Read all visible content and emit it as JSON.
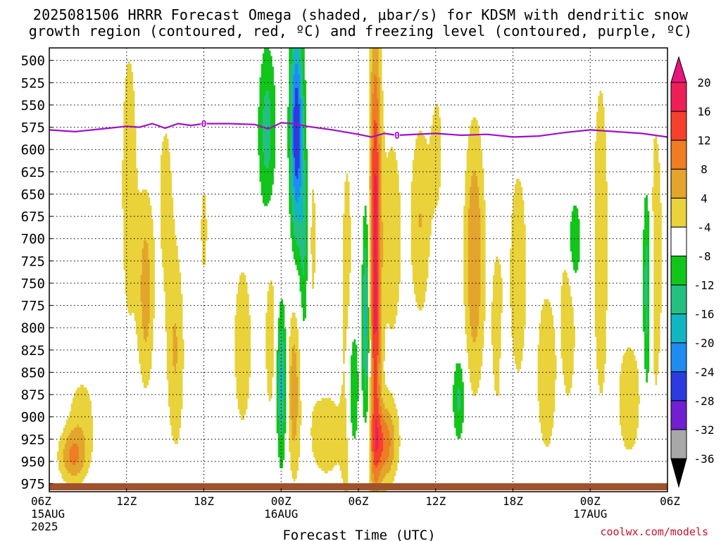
{
  "title_line1": "2025081506 HRRR Forecast Omega (shaded, μbar/s) for KDSM with dendritic snow",
  "title_line2": "growth region (contoured, red, ºC) and freezing level (contoured, purple, ºC)",
  "credit": "coolwx.com/models",
  "chart_data": {
    "type": "heatmap",
    "xlabel": "Forecast Time (UTC)",
    "x_range_hours": [
      0,
      48
    ],
    "x_ticks": [
      {
        "h": 0,
        "label": "06Z",
        "sub": "15AUG",
        "sub2": "2025"
      },
      {
        "h": 6,
        "label": "12Z"
      },
      {
        "h": 12,
        "label": "18Z"
      },
      {
        "h": 18,
        "label": "00Z",
        "sub": "16AUG"
      },
      {
        "h": 24,
        "label": "06Z"
      },
      {
        "h": 30,
        "label": "12Z"
      },
      {
        "h": 36,
        "label": "18Z"
      },
      {
        "h": 42,
        "label": "00Z",
        "sub": "17AUG"
      },
      {
        "h": 48,
        "label": "06Z"
      }
    ],
    "y_levels": [
      500,
      525,
      550,
      575,
      600,
      625,
      650,
      675,
      700,
      725,
      750,
      775,
      800,
      825,
      850,
      875,
      900,
      925,
      950,
      975
    ],
    "y_range_mb": [
      486,
      984
    ],
    "grid": true,
    "colorbar": {
      "labels": [
        "20",
        "16",
        "12",
        "8",
        "4",
        "-4",
        "-8",
        "-12",
        "-16",
        "-20",
        "-24",
        "-28",
        "-32",
        "-36"
      ],
      "colors": [
        "#ee1f57",
        "#f5402e",
        "#ee7d24",
        "#e3a52c",
        "#e9d23a",
        "#ffffff",
        "#12c51a",
        "#23c080",
        "#12b5c2",
        "#1e8cf0",
        "#2a3ce0",
        "#7020d0",
        "#a010c8",
        "#a8a8a8"
      ],
      "top_arrow_color": "#e8157f",
      "bottom_arrow_color": "#000000"
    },
    "freezing_level": {
      "color": "#a010c8",
      "label": "0",
      "points": [
        [
          0,
          578
        ],
        [
          2,
          580
        ],
        [
          4,
          577
        ],
        [
          6,
          574
        ],
        [
          7,
          575
        ],
        [
          8,
          571
        ],
        [
          9,
          576
        ],
        [
          10,
          571
        ],
        [
          11,
          573
        ],
        [
          12,
          571
        ],
        [
          14,
          571
        ],
        [
          16,
          572
        ],
        [
          17,
          577
        ],
        [
          18,
          570
        ],
        [
          19,
          571
        ],
        [
          20,
          574
        ],
        [
          22,
          578
        ],
        [
          24,
          583
        ],
        [
          25,
          586
        ],
        [
          26,
          582
        ],
        [
          27,
          584
        ],
        [
          30,
          582
        ],
        [
          32,
          584
        ],
        [
          34,
          583
        ],
        [
          36,
          586
        ],
        [
          38,
          585
        ],
        [
          40,
          581
        ],
        [
          42,
          578
        ],
        [
          44,
          580
        ],
        [
          46,
          582
        ],
        [
          48,
          586
        ]
      ],
      "label_positions": [
        [
          12,
          571
        ],
        [
          27,
          584
        ]
      ]
    },
    "omega_features": [
      {
        "type": "pos",
        "h": 1.8,
        "p": 945,
        "sh": 1.1,
        "sp": 30,
        "v": 11
      },
      {
        "type": "pos",
        "h": 2.5,
        "p": 900,
        "sh": 1.2,
        "sp": 55,
        "v": 6
      },
      {
        "type": "pos",
        "h": 6.2,
        "p": 640,
        "sh": 0.8,
        "sp": 220,
        "v": 6
      },
      {
        "type": "pos",
        "h": 7.5,
        "p": 760,
        "sh": 0.6,
        "sp": 110,
        "v": 10
      },
      {
        "type": "pos",
        "h": 9.0,
        "p": 650,
        "sh": 0.8,
        "sp": 140,
        "v": 5
      },
      {
        "type": "pos",
        "h": 9.8,
        "p": 830,
        "sh": 0.7,
        "sp": 120,
        "v": 8
      },
      {
        "type": "pos",
        "h": 12.0,
        "p": 690,
        "sh": 0.4,
        "sp": 90,
        "v": 5
      },
      {
        "type": "pos",
        "h": 15.0,
        "p": 820,
        "sh": 0.8,
        "sp": 110,
        "v": 7
      },
      {
        "type": "pos",
        "h": 17.2,
        "p": 810,
        "sh": 0.6,
        "sp": 120,
        "v": 6
      },
      {
        "type": "pos",
        "h": 19.0,
        "p": 870,
        "sh": 0.5,
        "sp": 100,
        "v": 11
      },
      {
        "type": "pos",
        "h": 20.4,
        "p": 700,
        "sh": 0.5,
        "sp": 140,
        "v": 5
      },
      {
        "type": "pos",
        "h": 21.5,
        "p": 920,
        "sh": 1.3,
        "sp": 50,
        "v": 8
      },
      {
        "type": "pos",
        "h": 23.1,
        "p": 820,
        "sh": 0.5,
        "sp": 260,
        "v": 7
      },
      {
        "type": "pos",
        "h": 25.3,
        "p": 720,
        "sh": 0.45,
        "sp": 260,
        "v": 22
      },
      {
        "type": "pos",
        "h": 26.0,
        "p": 930,
        "sh": 1.0,
        "sp": 45,
        "v": 14
      },
      {
        "type": "pos",
        "h": 26.6,
        "p": 700,
        "sh": 1.0,
        "sp": 160,
        "v": 6
      },
      {
        "type": "pos",
        "h": 28.8,
        "p": 680,
        "sh": 0.8,
        "sp": 120,
        "v": 8
      },
      {
        "type": "pos",
        "h": 30.1,
        "p": 600,
        "sh": 0.6,
        "sp": 100,
        "v": 5
      },
      {
        "type": "pos",
        "h": 33.0,
        "p": 720,
        "sh": 0.8,
        "sp": 150,
        "v": 12
      },
      {
        "type": "pos",
        "h": 34.8,
        "p": 800,
        "sh": 0.6,
        "sp": 120,
        "v": 6
      },
      {
        "type": "pos",
        "h": 36.4,
        "p": 740,
        "sh": 0.7,
        "sp": 130,
        "v": 8
      },
      {
        "type": "pos",
        "h": 38.6,
        "p": 850,
        "sh": 0.8,
        "sp": 100,
        "v": 8
      },
      {
        "type": "pos",
        "h": 40.3,
        "p": 750,
        "sh": 0.6,
        "sp": 130,
        "v": 10
      },
      {
        "type": "pos",
        "h": 42.8,
        "p": 700,
        "sh": 0.6,
        "sp": 200,
        "v": 8
      },
      {
        "type": "pos",
        "h": 45.0,
        "p": 880,
        "sh": 1.2,
        "sp": 90,
        "v": 6
      },
      {
        "type": "pos",
        "h": 47.0,
        "p": 720,
        "sh": 0.8,
        "sp": 220,
        "v": 6
      },
      {
        "type": "neg",
        "h": 16.9,
        "p": 580,
        "sh": 0.7,
        "sp": 100,
        "v": -10
      },
      {
        "type": "neg",
        "h": 19.2,
        "p": 580,
        "sh": 0.5,
        "sp": 120,
        "v": -24
      },
      {
        "type": "neg",
        "h": 19.8,
        "p": 700,
        "sh": 0.35,
        "sp": 120,
        "v": -9
      },
      {
        "type": "neg",
        "h": 18.0,
        "p": 860,
        "sh": 0.4,
        "sp": 90,
        "v": -14
      },
      {
        "type": "neg",
        "h": 23.5,
        "p": 870,
        "sh": 0.5,
        "sp": 90,
        "v": -10
      },
      {
        "type": "neg",
        "h": 24.6,
        "p": 790,
        "sh": 0.3,
        "sp": 130,
        "v": -14
      },
      {
        "type": "neg",
        "h": 31.8,
        "p": 880,
        "sh": 0.5,
        "sp": 50,
        "v": -9
      },
      {
        "type": "neg",
        "h": 35.3,
        "p": 830,
        "sh": 0.25,
        "sp": 40,
        "v": -6
      },
      {
        "type": "neg",
        "h": 40.6,
        "p": 705,
        "sh": 0.6,
        "sp": 60,
        "v": -13
      },
      {
        "type": "neg",
        "h": 46.4,
        "p": 760,
        "sh": 0.35,
        "sp": 140,
        "v": -13
      }
    ]
  }
}
